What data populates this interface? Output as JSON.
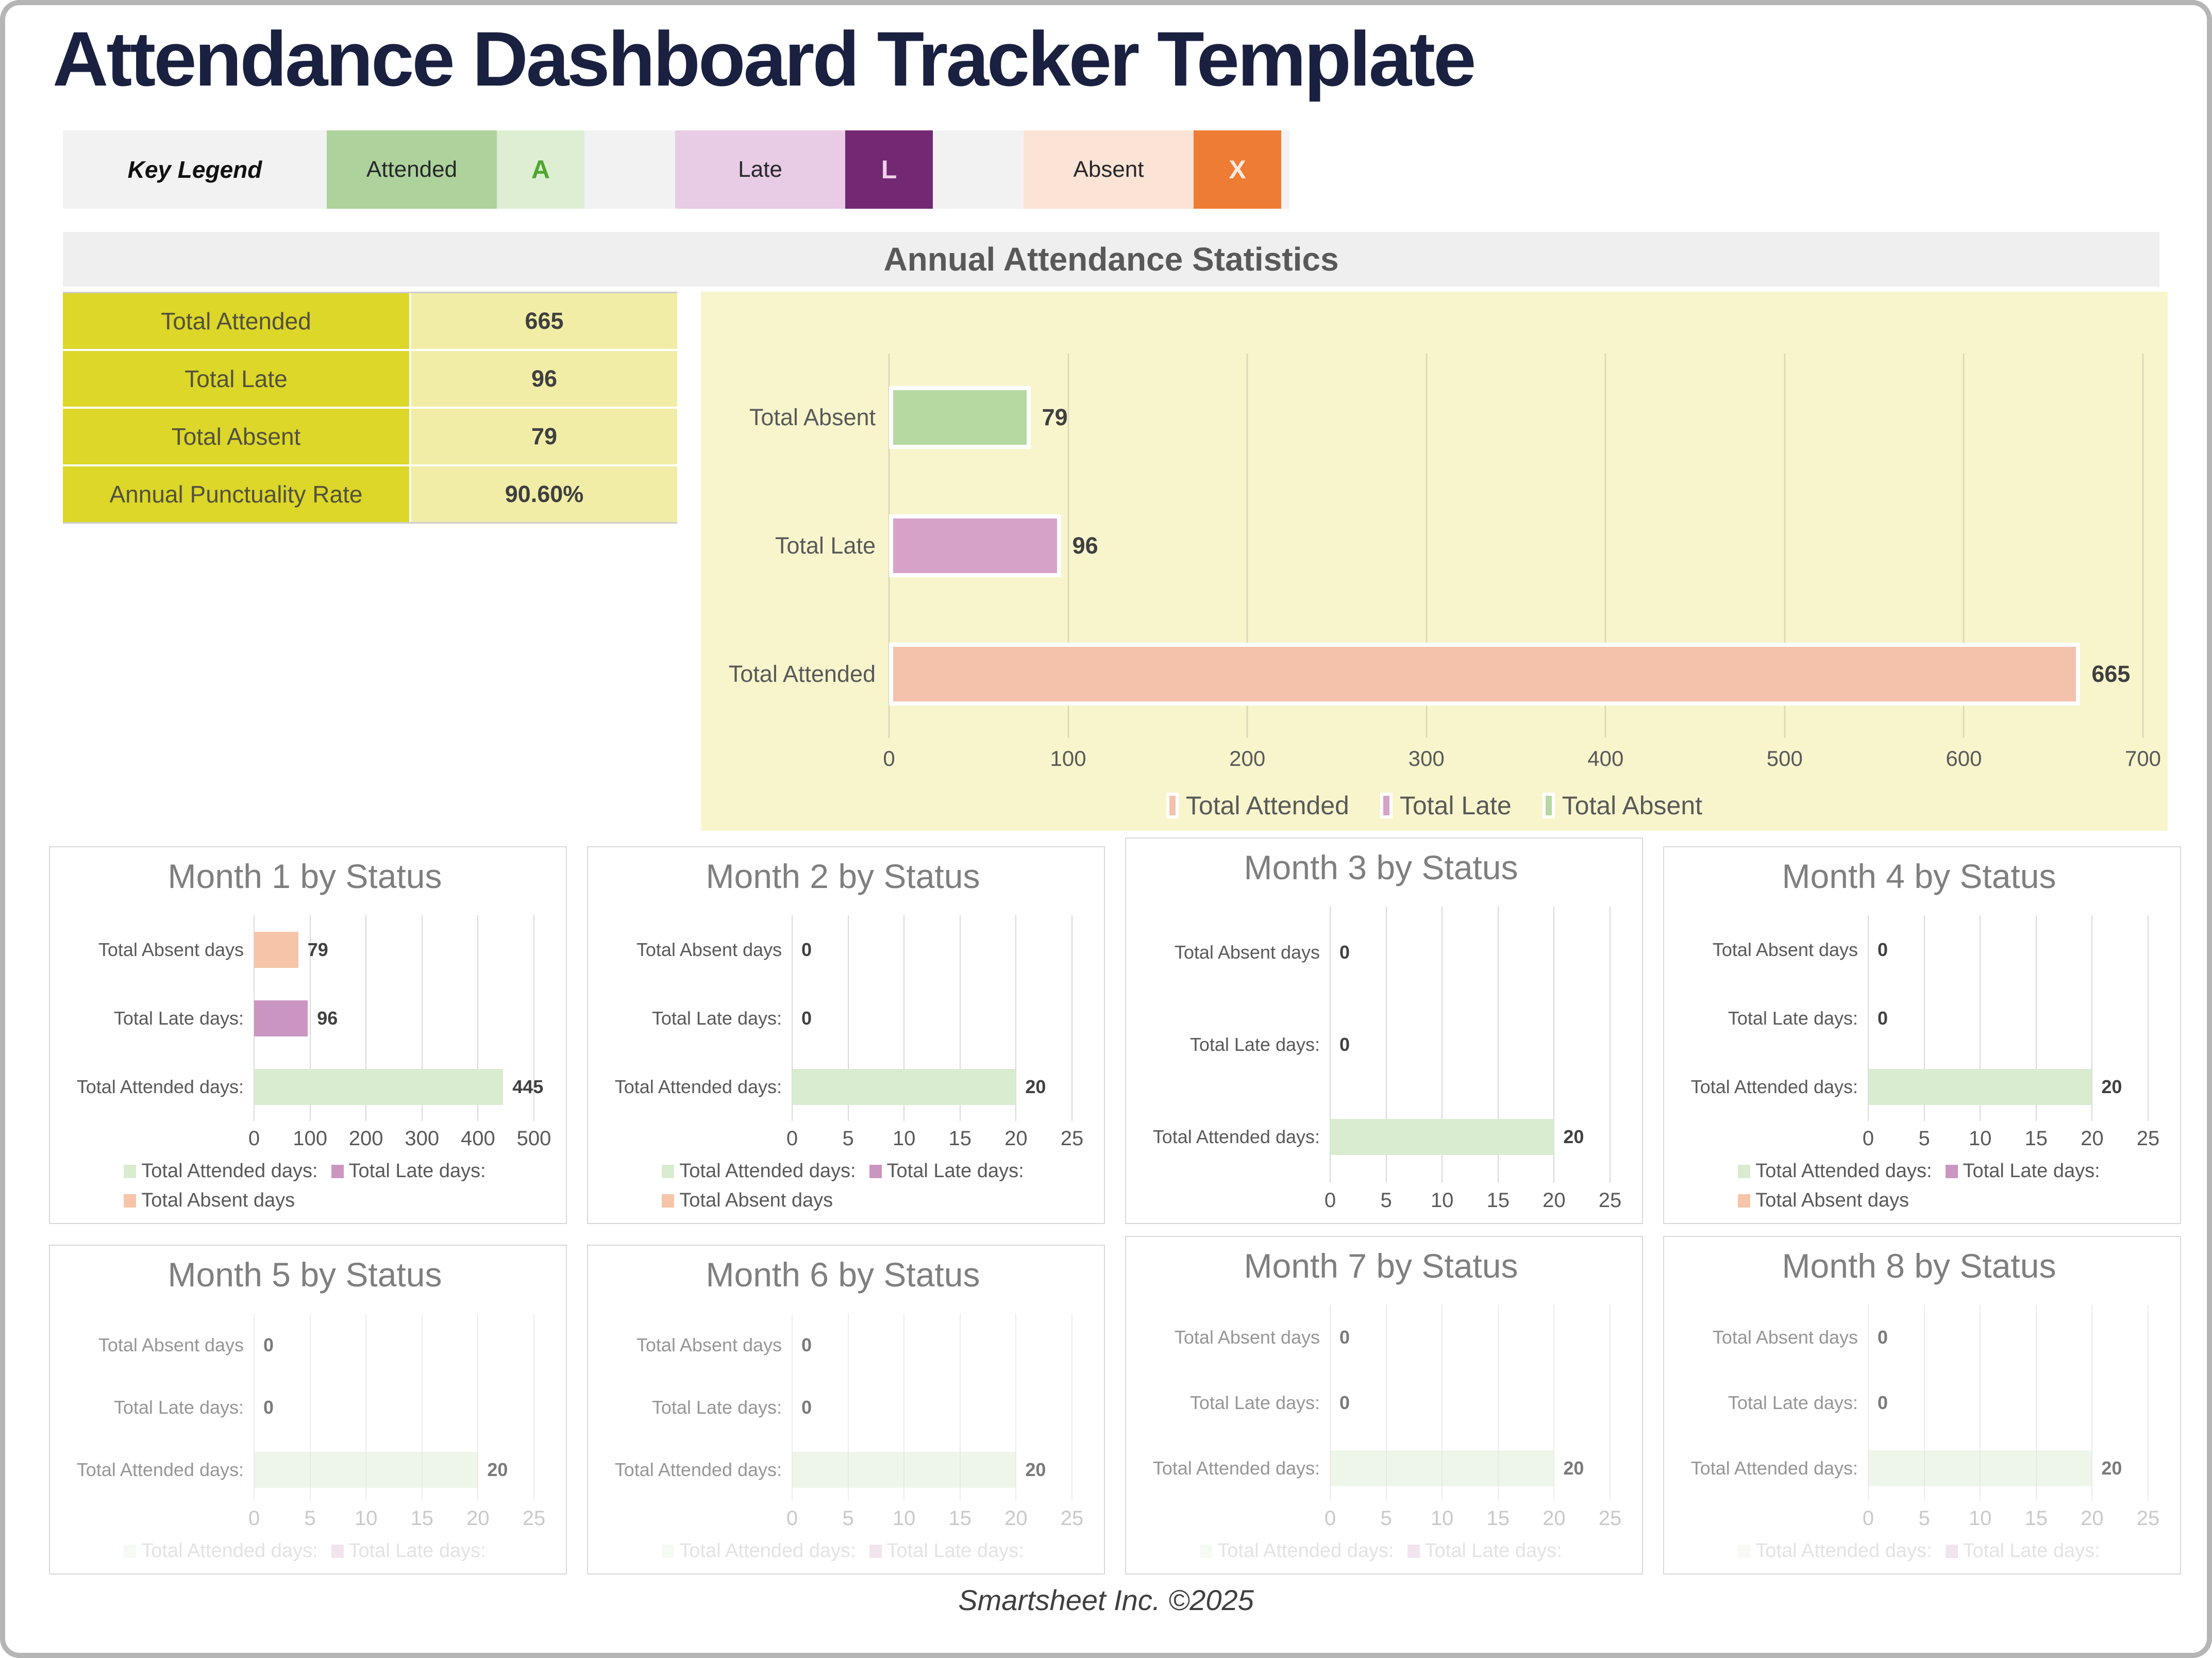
{
  "page": {
    "title": "Attendance Dashboard Tracker Template",
    "footer": "Smartsheet Inc. ©2025"
  },
  "key_legend": {
    "label": "Key Legend",
    "items": [
      {
        "name": "Attended",
        "code": "A",
        "cell_bg": "#aed29b",
        "code_bg": "#ddeed3",
        "code_color": "#4ea72e"
      },
      {
        "name": "Late",
        "code": "L",
        "cell_bg": "#e8cbe4",
        "code_bg": "#722873",
        "code_color": "#ecd2e7"
      },
      {
        "name": "Absent",
        "code": "X",
        "cell_bg": "#fbe3d5",
        "code_bg": "#ee7c34",
        "code_color": "#fdebdf"
      }
    ]
  },
  "annual": {
    "header": "Annual Attendance Statistics",
    "stats": [
      {
        "label": "Total Attended",
        "value": "665"
      },
      {
        "label": "Total Late",
        "value": "96"
      },
      {
        "label": "Total Absent",
        "value": "79"
      },
      {
        "label": "Annual Punctuality Rate",
        "value": "90.60%"
      }
    ],
    "table_colors": {
      "label_bg": "#dcd728",
      "value_bg": "#f1eda6"
    }
  },
  "chart_data": [
    {
      "id": "annual-attendance",
      "type": "bar",
      "orientation": "horizontal",
      "title": "Annual Attendance Statistics",
      "categories": [
        "Total Absent",
        "Total Late",
        "Total Attended"
      ],
      "values": [
        79,
        96,
        665
      ],
      "bar_colors": [
        "#b5d9a1",
        "#d7a2c8",
        "#f4c2aa"
      ],
      "xlim": [
        0,
        700
      ],
      "xticks": [
        0,
        100,
        200,
        300,
        400,
        500,
        600,
        700
      ],
      "grid": true,
      "background": "#f8f5cd",
      "legend_position": "bottom",
      "legend": [
        [
          {
            "label": "Total Attended",
            "color": "#f4c2aa"
          },
          {
            "label": "Total Late",
            "color": "#d7a2c8"
          },
          {
            "label": "Total Absent",
            "color": "#b5d9a1"
          }
        ]
      ]
    },
    {
      "id": "month-1",
      "type": "bar",
      "orientation": "horizontal",
      "title": "Month 1 by Status",
      "categories": [
        "Total Absent days",
        "Total Late days:",
        "Total Attended days:"
      ],
      "values": [
        79,
        96,
        445
      ],
      "bar_colors": [
        "#f6c5a9",
        "#cb95c1",
        "#d9ecd0"
      ],
      "xlim": [
        0,
        500
      ],
      "xticks": [
        0,
        100,
        200,
        300,
        400,
        500
      ],
      "grid": true,
      "faded": false,
      "raised": false,
      "legend": [
        [
          {
            "label": "Total Attended days:",
            "color": "#d9ecd0"
          },
          {
            "label": "Total Late days:",
            "color": "#cb95c1"
          }
        ],
        [
          {
            "label": "Total Absent days",
            "color": "#f6c5a9"
          }
        ]
      ]
    },
    {
      "id": "month-2",
      "type": "bar",
      "orientation": "horizontal",
      "title": "Month 2 by Status",
      "categories": [
        "Total Absent days",
        "Total Late days:",
        "Total Attended days:"
      ],
      "values": [
        0,
        0,
        20
      ],
      "bar_colors": [
        "#f6c5a9",
        "#cb95c1",
        "#d9ecd0"
      ],
      "xlim": [
        0,
        25
      ],
      "xticks": [
        0,
        5,
        10,
        15,
        20,
        25
      ],
      "grid": true,
      "faded": false,
      "raised": false,
      "legend": [
        [
          {
            "label": "Total Attended days:",
            "color": "#d9ecd0"
          },
          {
            "label": "Total Late days:",
            "color": "#cb95c1"
          }
        ],
        [
          {
            "label": "Total Absent days",
            "color": "#f6c5a9"
          }
        ]
      ]
    },
    {
      "id": "month-3",
      "type": "bar",
      "orientation": "horizontal",
      "title": "Month 3 by Status",
      "categories": [
        "Total Absent days",
        "Total Late days:",
        "Total Attended days:"
      ],
      "values": [
        0,
        0,
        20
      ],
      "bar_colors": [
        "#f6c5a9",
        "#cb95c1",
        "#d9ecd0"
      ],
      "xlim": [
        0,
        25
      ],
      "xticks": [
        0,
        5,
        10,
        15,
        20,
        25
      ],
      "grid": true,
      "faded": false,
      "raised": true,
      "legend": null
    },
    {
      "id": "month-4",
      "type": "bar",
      "orientation": "horizontal",
      "title": "Month 4 by Status",
      "categories": [
        "Total Absent days",
        "Total Late days:",
        "Total Attended days:"
      ],
      "values": [
        0,
        0,
        20
      ],
      "bar_colors": [
        "#f6c5a9",
        "#cb95c1",
        "#d9ecd0"
      ],
      "xlim": [
        0,
        25
      ],
      "xticks": [
        0,
        5,
        10,
        15,
        20,
        25
      ],
      "grid": true,
      "faded": false,
      "raised": false,
      "legend": [
        [
          {
            "label": "Total Attended days:",
            "color": "#d9ecd0"
          },
          {
            "label": "Total Late days:",
            "color": "#cb95c1"
          }
        ],
        [
          {
            "label": "Total Absent days",
            "color": "#f6c5a9"
          }
        ]
      ]
    },
    {
      "id": "month-5",
      "type": "bar",
      "orientation": "horizontal",
      "title": "Month 5 by Status",
      "categories": [
        "Total Absent days",
        "Total Late days:",
        "Total Attended days:"
      ],
      "values": [
        0,
        0,
        20
      ],
      "bar_colors": [
        "#f6c5a9",
        "#cb95c1",
        "#d9ecd0"
      ],
      "xlim": [
        0,
        25
      ],
      "xticks": [
        0,
        5,
        10,
        15,
        20,
        25
      ],
      "grid": true,
      "faded": true,
      "raised": false,
      "legend": [
        [
          {
            "label": "Total Attended days:",
            "color": "#d9ecd0"
          },
          {
            "label": "Total Late days:",
            "color": "#cb95c1"
          }
        ]
      ]
    },
    {
      "id": "month-6",
      "type": "bar",
      "orientation": "horizontal",
      "title": "Month 6 by Status",
      "categories": [
        "Total Absent days",
        "Total Late days:",
        "Total Attended days:"
      ],
      "values": [
        0,
        0,
        20
      ],
      "bar_colors": [
        "#f6c5a9",
        "#cb95c1",
        "#d9ecd0"
      ],
      "xlim": [
        0,
        25
      ],
      "xticks": [
        0,
        5,
        10,
        15,
        20,
        25
      ],
      "grid": true,
      "faded": true,
      "raised": false,
      "legend": [
        [
          {
            "label": "Total Attended days:",
            "color": "#d9ecd0"
          },
          {
            "label": "Total Late days:",
            "color": "#cb95c1"
          }
        ]
      ]
    },
    {
      "id": "month-7",
      "type": "bar",
      "orientation": "horizontal",
      "title": "Month 7 by Status",
      "categories": [
        "Total Absent days",
        "Total Late days:",
        "Total Attended days:"
      ],
      "values": [
        0,
        0,
        20
      ],
      "bar_colors": [
        "#f6c5a9",
        "#cb95c1",
        "#d9ecd0"
      ],
      "xlim": [
        0,
        25
      ],
      "xticks": [
        0,
        5,
        10,
        15,
        20,
        25
      ],
      "grid": true,
      "faded": true,
      "raised": true,
      "legend": [
        [
          {
            "label": "Total Attended days:",
            "color": "#d9ecd0"
          },
          {
            "label": "Total Late days:",
            "color": "#cb95c1"
          }
        ]
      ]
    },
    {
      "id": "month-8",
      "type": "bar",
      "orientation": "horizontal",
      "title": "Month 8 by Status",
      "categories": [
        "Total Absent days",
        "Total Late days:",
        "Total Attended days:"
      ],
      "values": [
        0,
        0,
        20
      ],
      "bar_colors": [
        "#f6c5a9",
        "#cb95c1",
        "#d9ecd0"
      ],
      "xlim": [
        0,
        25
      ],
      "xticks": [
        0,
        5,
        10,
        15,
        20,
        25
      ],
      "grid": true,
      "faded": true,
      "raised": true,
      "legend": [
        [
          {
            "label": "Total Attended days:",
            "color": "#d9ecd0"
          },
          {
            "label": "Total Late days:",
            "color": "#cb95c1"
          }
        ]
      ]
    }
  ]
}
